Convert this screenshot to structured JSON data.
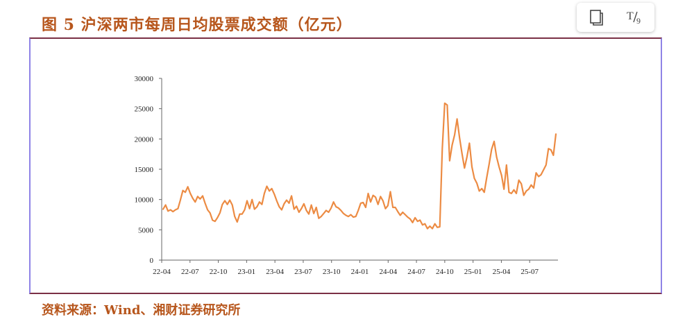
{
  "figure_title": "图 5  沪深两市每周日均股票成交额（亿元）",
  "source_note": "资料来源：Wind、湘财证券研究所",
  "toolbar": {
    "page_icon": "document-icon",
    "text_tool_label": "T/9"
  },
  "colors": {
    "line": "#ec8b43",
    "accent_text": "#b7561c"
  },
  "chart_data": {
    "type": "line",
    "title": "",
    "xlabel": "",
    "ylabel": "",
    "ylim": [
      0,
      30000
    ],
    "yticks": [
      "0",
      "5000",
      "10000",
      "15000",
      "20000",
      "25000",
      "30000"
    ],
    "xticks": [
      "22-04",
      "22-07",
      "22-10",
      "23-01",
      "23-04",
      "23-07",
      "23-10",
      "24-01",
      "24-04",
      "24-07",
      "24-10",
      "25-01",
      "25-04",
      "25-07"
    ],
    "grid": false,
    "legend": "none",
    "series": [
      {
        "name": "",
        "values": [
          8400,
          9100,
          8100,
          8300,
          8000,
          8300,
          8500,
          9900,
          11500,
          11200,
          12100,
          11000,
          10200,
          9600,
          10500,
          10100,
          10600,
          9400,
          8300,
          7800,
          6600,
          6400,
          7000,
          7800,
          9200,
          9800,
          9200,
          9900,
          9100,
          7200,
          6300,
          7600,
          7600,
          8300,
          9800,
          8500,
          10000,
          8400,
          8800,
          9600,
          9200,
          11000,
          12200,
          11400,
          11800,
          10900,
          9800,
          8800,
          8300,
          9300,
          9900,
          9400,
          10600,
          8400,
          8900,
          7900,
          8500,
          9300,
          8200,
          7600,
          9100,
          7700,
          8700,
          6900,
          7200,
          7700,
          8200,
          7900,
          8600,
          9600,
          8800,
          8600,
          8200,
          7700,
          7400,
          7200,
          7500,
          7100,
          7200,
          8200,
          9400,
          9500,
          8700,
          11000,
          9600,
          10700,
          10400,
          9200,
          10500,
          9800,
          8500,
          9000,
          11300,
          8700,
          8700,
          8000,
          7400,
          7900,
          7500,
          7100,
          6800,
          6200,
          7000,
          6400,
          6600,
          5800,
          6000,
          5200,
          5600,
          5200,
          6000,
          5400,
          5500,
          18400,
          25900,
          25600,
          16400,
          19000,
          20700,
          23300,
          20200,
          17600,
          15200,
          17000,
          19300,
          15400,
          13500,
          12700,
          11400,
          11800,
          11200,
          13600,
          15900,
          18300,
          19600,
          17000,
          15400,
          14000,
          11700,
          15700,
          11200,
          11000,
          11600,
          11000,
          13200,
          12600,
          10700,
          11400,
          11700,
          12400,
          11900,
          14400,
          13800,
          14100,
          14900,
          15700,
          18400,
          18200,
          17300,
          20800
        ]
      }
    ]
  }
}
